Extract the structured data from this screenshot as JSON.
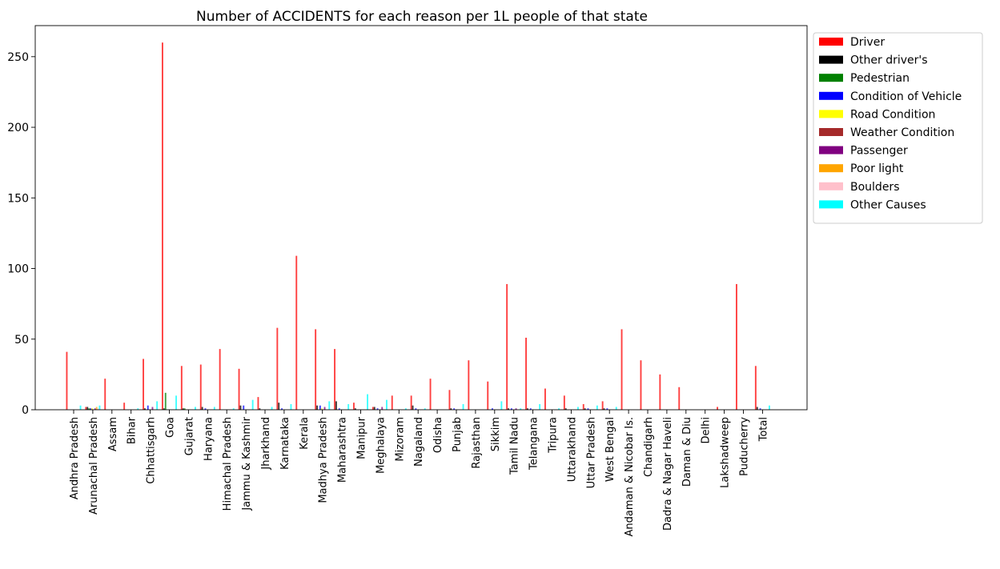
{
  "chart_data": {
    "type": "bar",
    "title": "Number of ACCIDENTS for each reason per 1L people of that state",
    "xlabel": "",
    "ylabel": "",
    "ylim": [
      0,
      272
    ],
    "yticks": [
      0,
      50,
      100,
      150,
      200,
      250
    ],
    "grid": false,
    "legend_position": "outside-right-top",
    "categories": [
      "Andhra Pradesh",
      "Arunachal Pradesh",
      "Assam",
      "Bihar",
      "Chhattisgarh",
      "Goa",
      "Gujarat",
      "Haryana",
      "Himachal Pradesh",
      "Jammu & Kashmir",
      "Jharkhand",
      "Karnataka",
      "Kerala",
      "Madhya Pradesh",
      "Maharashtra",
      "Manipur",
      "Meghalaya",
      "Mizoram",
      "Nagaland",
      "Odisha",
      "Punjab",
      "Rajasthan",
      "Sikkim",
      "Tamil Nadu",
      "Telangana",
      "Tripura",
      "Uttarakhand",
      "Uttar Pradesh",
      "West Bengal",
      "Andaman & Nicobar Is.",
      "Chandigarh",
      "Dadra & Nagar Haveli",
      "Daman & Diu",
      "Delhi",
      "Lakshadweep",
      "Puducherry",
      "Total"
    ],
    "series": [
      {
        "name": "Driver",
        "color": "#ff0000",
        "values": [
          41,
          2,
          22,
          5,
          36,
          260,
          31,
          32,
          43,
          29,
          9,
          58,
          109,
          57,
          43,
          5,
          2,
          10,
          10,
          22,
          14,
          35,
          20,
          89,
          51,
          15,
          10,
          4,
          6,
          57,
          35,
          25,
          16,
          0,
          2,
          89,
          31
        ]
      },
      {
        "name": "Other driver's",
        "color": "#000000",
        "values": [
          0,
          2,
          0,
          0,
          1,
          1,
          1,
          2,
          0,
          3,
          1,
          5,
          0,
          3,
          6,
          1,
          2,
          0,
          3,
          0,
          1,
          0,
          0,
          1,
          1,
          0,
          1,
          1,
          1,
          0,
          0,
          0,
          0,
          0,
          0,
          0,
          2
        ]
      },
      {
        "name": "Pedestrian",
        "color": "#008000",
        "values": [
          0,
          1,
          0,
          0,
          0,
          12,
          1,
          0,
          0,
          0,
          0,
          0,
          0,
          0,
          0,
          0,
          0,
          0,
          0,
          0,
          0,
          0,
          0,
          0,
          0,
          0,
          0,
          0,
          0,
          0,
          0,
          0,
          0,
          0,
          0,
          0,
          0
        ]
      },
      {
        "name": "Condition of Vehicle",
        "color": "#0000ff",
        "values": [
          0,
          1,
          0,
          0,
          3,
          0,
          0,
          1,
          0,
          3,
          0,
          1,
          0,
          3,
          1,
          0,
          1,
          0,
          1,
          0,
          1,
          0,
          1,
          1,
          1,
          0,
          0,
          1,
          1,
          0,
          0,
          0,
          0,
          0,
          0,
          0,
          1
        ]
      },
      {
        "name": "Road Condition",
        "color": "#ffff00",
        "values": [
          0,
          1,
          0,
          0,
          0,
          0,
          0,
          0,
          0,
          0,
          0,
          0,
          0,
          1,
          0,
          0,
          0,
          0,
          0,
          0,
          0,
          0,
          0,
          0,
          0,
          0,
          0,
          0,
          0,
          0,
          0,
          0,
          0,
          0,
          0,
          0,
          0
        ]
      },
      {
        "name": "Weather Condition",
        "color": "#a52a2a",
        "values": [
          0,
          0,
          0,
          0,
          0,
          0,
          0,
          0,
          0,
          0,
          0,
          0,
          0,
          0,
          0,
          0,
          0,
          0,
          0,
          0,
          0,
          0,
          0,
          0,
          0,
          0,
          0,
          0,
          0,
          0,
          0,
          0,
          0,
          0,
          0,
          0,
          0
        ]
      },
      {
        "name": "Passenger",
        "color": "#800080",
        "values": [
          0,
          1,
          0,
          0,
          2,
          0,
          0,
          0,
          0,
          0,
          0,
          0,
          0,
          2,
          0,
          0,
          2,
          0,
          0,
          0,
          0,
          0,
          0,
          1,
          0,
          0,
          0,
          0,
          0,
          0,
          0,
          0,
          0,
          0,
          0,
          0,
          0
        ]
      },
      {
        "name": "Poor light",
        "color": "#ffa500",
        "values": [
          0,
          2,
          0,
          0,
          0,
          0,
          0,
          0,
          0,
          0,
          0,
          0,
          0,
          0,
          0,
          0,
          0,
          0,
          0,
          0,
          0,
          0,
          0,
          0,
          0,
          0,
          0,
          0,
          0,
          0,
          0,
          0,
          0,
          0,
          0,
          0,
          0
        ]
      },
      {
        "name": "Boulders",
        "color": "#ffc0cb",
        "values": [
          0,
          1,
          0,
          0,
          0,
          0,
          0,
          0,
          0,
          0,
          0,
          0,
          0,
          0,
          0,
          0,
          0,
          0,
          0,
          0,
          0,
          0,
          0,
          0,
          0,
          0,
          0,
          0,
          0,
          0,
          0,
          0,
          0,
          0,
          0,
          0,
          0
        ]
      },
      {
        "name": "Other Causes",
        "color": "#00ffff",
        "values": [
          3,
          3,
          0,
          1,
          6,
          10,
          2,
          2,
          1,
          7,
          2,
          4,
          0,
          6,
          4,
          11,
          7,
          1,
          1,
          0,
          4,
          0,
          6,
          1,
          4,
          1,
          2,
          3,
          2,
          0,
          0,
          0,
          0,
          0,
          0,
          0,
          3
        ]
      }
    ]
  }
}
